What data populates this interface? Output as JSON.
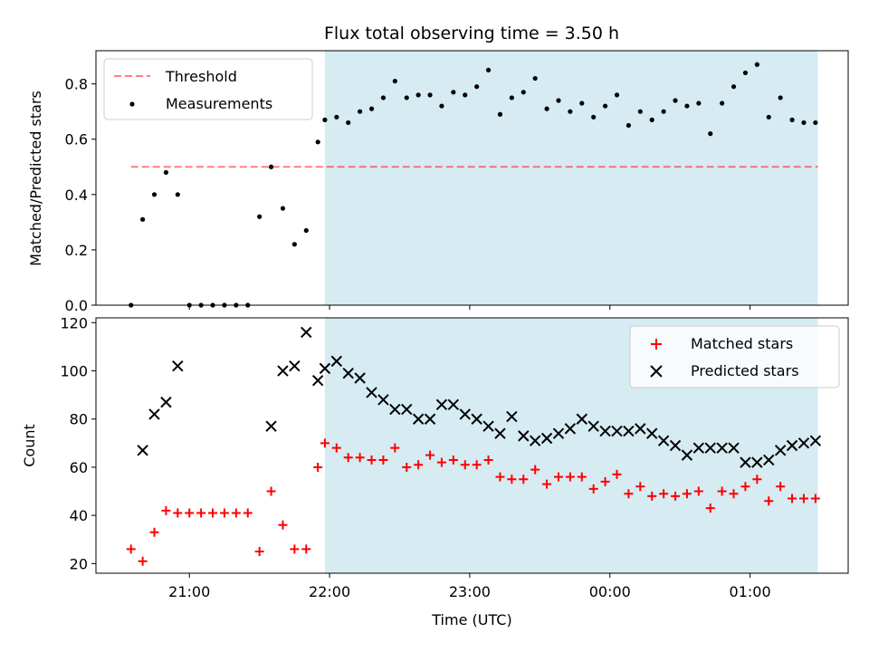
{
  "figure": {
    "title": "Flux total observing time = 3.50 h"
  },
  "colors": {
    "band": "#add8e6",
    "threshold": "#ff0000",
    "measurement": "#000000",
    "matched": "#ff0000",
    "predicted": "#000000"
  },
  "chart_data": [
    {
      "type": "scatter",
      "title": "Flux total observing time = 3.50 h",
      "xlabel": "",
      "ylabel": "Matched/Predicted stars",
      "xlim": [
        "20:20",
        "01:42"
      ],
      "ylim": [
        0,
        0.92
      ],
      "xticks": [
        "21:00",
        "22:00",
        "23:00",
        "00:00",
        "01:00"
      ],
      "yticks": [
        "0.0",
        "0.2",
        "0.4",
        "0.6",
        "0.8"
      ],
      "legend": {
        "position": "upper left",
        "entries": [
          "Threshold",
          "Measurements"
        ]
      },
      "shaded_interval": {
        "x": [
          "21:58",
          "01:29"
        ]
      },
      "threshold": {
        "name": "Threshold",
        "y": 0.5,
        "x": [
          "20:35",
          "01:29"
        ]
      },
      "series": [
        {
          "name": "Measurements",
          "marker": "dot",
          "x": [
            "20:35",
            "20:40",
            "20:45",
            "20:50",
            "20:55",
            "21:00",
            "21:05",
            "21:10",
            "21:15",
            "21:20",
            "21:25",
            "21:30",
            "21:35",
            "21:40",
            "21:45",
            "21:50",
            "21:55",
            "21:58",
            "22:03",
            "22:08",
            "22:13",
            "22:18",
            "22:23",
            "22:28",
            "22:33",
            "22:38",
            "22:43",
            "22:48",
            "22:53",
            "22:58",
            "23:03",
            "23:08",
            "23:13",
            "23:18",
            "23:23",
            "23:28",
            "23:33",
            "23:38",
            "23:43",
            "23:48",
            "23:53",
            "23:58",
            "00:03",
            "00:08",
            "00:13",
            "00:18",
            "00:23",
            "00:28",
            "00:33",
            "00:38",
            "00:43",
            "00:48",
            "00:53",
            "00:58",
            "01:03",
            "01:08",
            "01:13",
            "01:18",
            "01:23",
            "01:28"
          ],
          "y": [
            0.0,
            0.31,
            0.4,
            0.48,
            0.4,
            0.0,
            0.0,
            0.0,
            0.0,
            0.0,
            0.0,
            0.32,
            0.5,
            0.35,
            0.22,
            0.27,
            0.59,
            0.67,
            0.68,
            0.66,
            0.7,
            0.71,
            0.75,
            0.81,
            0.75,
            0.76,
            0.76,
            0.72,
            0.77,
            0.76,
            0.79,
            0.85,
            0.69,
            0.75,
            0.77,
            0.82,
            0.71,
            0.74,
            0.7,
            0.73,
            0.68,
            0.72,
            0.76,
            0.65,
            0.7,
            0.67,
            0.7,
            0.74,
            0.72,
            0.73,
            0.62,
            0.73,
            0.79,
            0.84,
            0.87,
            0.68,
            0.75,
            0.67,
            0.66,
            0.66
          ]
        }
      ]
    },
    {
      "type": "scatter",
      "title": "",
      "xlabel": "Time (UTC)",
      "ylabel": "Count",
      "xlim": [
        "20:20",
        "01:42"
      ],
      "ylim": [
        16,
        122
      ],
      "xticks": [
        "21:00",
        "22:00",
        "23:00",
        "00:00",
        "01:00"
      ],
      "yticks": [
        "20",
        "40",
        "60",
        "80",
        "100",
        "120"
      ],
      "legend": {
        "position": "upper right",
        "entries": [
          "Matched stars",
          "Predicted stars"
        ]
      },
      "shaded_interval": {
        "x": [
          "21:58",
          "01:29"
        ]
      },
      "series": [
        {
          "name": "Matched stars",
          "marker": "plus",
          "x": [
            "20:35",
            "20:40",
            "20:45",
            "20:50",
            "20:55",
            "21:00",
            "21:05",
            "21:10",
            "21:15",
            "21:20",
            "21:25",
            "21:30",
            "21:35",
            "21:40",
            "21:45",
            "21:50",
            "21:55",
            "21:58",
            "22:03",
            "22:08",
            "22:13",
            "22:18",
            "22:23",
            "22:28",
            "22:33",
            "22:38",
            "22:43",
            "22:48",
            "22:53",
            "22:58",
            "23:03",
            "23:08",
            "23:13",
            "23:18",
            "23:23",
            "23:28",
            "23:33",
            "23:38",
            "23:43",
            "23:48",
            "23:53",
            "23:58",
            "00:03",
            "00:08",
            "00:13",
            "00:18",
            "00:23",
            "00:28",
            "00:33",
            "00:38",
            "00:43",
            "00:48",
            "00:53",
            "00:58",
            "01:03",
            "01:08",
            "01:13",
            "01:18",
            "01:23",
            "01:28"
          ],
          "y": [
            26,
            21,
            33,
            42,
            41,
            41,
            41,
            41,
            41,
            41,
            41,
            25,
            50,
            36,
            26,
            26,
            60,
            70,
            68,
            64,
            64,
            63,
            63,
            68,
            60,
            61,
            65,
            62,
            63,
            61,
            61,
            63,
            56,
            55,
            55,
            59,
            53,
            56,
            56,
            56,
            51,
            54,
            57,
            49,
            52,
            48,
            49,
            48,
            49,
            50,
            43,
            50,
            49,
            52,
            55,
            46,
            52,
            47,
            47,
            47
          ]
        },
        {
          "name": "Predicted stars",
          "marker": "x",
          "x": [
            "20:40",
            "20:45",
            "20:50",
            "20:55",
            "21:35",
            "21:40",
            "21:45",
            "21:50",
            "21:55",
            "21:58",
            "22:03",
            "22:08",
            "22:13",
            "22:18",
            "22:23",
            "22:28",
            "22:33",
            "22:38",
            "22:43",
            "22:48",
            "22:53",
            "22:58",
            "23:03",
            "23:08",
            "23:13",
            "23:18",
            "23:23",
            "23:28",
            "23:33",
            "23:38",
            "23:43",
            "23:48",
            "23:53",
            "23:58",
            "00:03",
            "00:08",
            "00:13",
            "00:18",
            "00:23",
            "00:28",
            "00:33",
            "00:38",
            "00:43",
            "00:48",
            "00:53",
            "00:58",
            "01:03",
            "01:08",
            "01:13",
            "01:18",
            "01:23",
            "01:28"
          ],
          "y": [
            67,
            82,
            87,
            102,
            77,
            100,
            102,
            116,
            96,
            101,
            104,
            99,
            97,
            91,
            88,
            84,
            84,
            80,
            80,
            86,
            86,
            82,
            80,
            77,
            74,
            81,
            73,
            71,
            72,
            74,
            76,
            80,
            77,
            75,
            75,
            75,
            76,
            74,
            71,
            69,
            65,
            68,
            68,
            68,
            68,
            62,
            62,
            63,
            67,
            69,
            70,
            71
          ]
        }
      ]
    }
  ]
}
